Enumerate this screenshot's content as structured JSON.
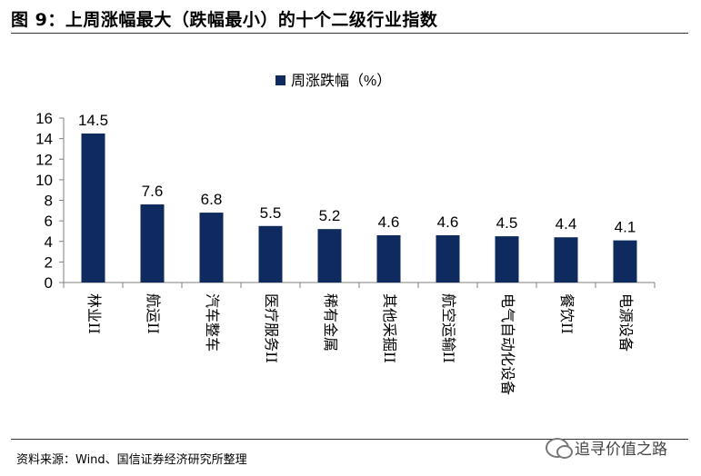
{
  "header": {
    "title": "图 9：上周涨幅最大（跌幅最小）的十个二级行业指数"
  },
  "footer": {
    "source": "资料来源：Wind、国信证券经济研究所整理",
    "watermark": "追寻价值之路",
    "watermark_icon": "wechat-icon"
  },
  "chart_data": {
    "type": "bar",
    "categories": [
      "林业II",
      "航运II",
      "汽车整车",
      "医疗服务II",
      "稀有金属",
      "其他采掘II",
      "航空运输II",
      "电气自动化设备",
      "餐饮II",
      "电源设备"
    ],
    "series": [
      {
        "name": "周涨跌幅（%）",
        "values": [
          14.5,
          7.6,
          6.8,
          5.5,
          5.2,
          4.6,
          4.6,
          4.5,
          4.4,
          4.1
        ]
      }
    ],
    "data_labels": [
      "14.5",
      "7.6",
      "6.8",
      "5.5",
      "5.2",
      "4.6",
      "4.6",
      "4.5",
      "4.4",
      "4.1"
    ],
    "yticks": [
      "0",
      "2",
      "4",
      "6",
      "8",
      "10",
      "12",
      "14",
      "16"
    ],
    "ylim": [
      0,
      16
    ],
    "grid": false,
    "legend_position": "top",
    "bar_color": "#0E2A5E"
  }
}
